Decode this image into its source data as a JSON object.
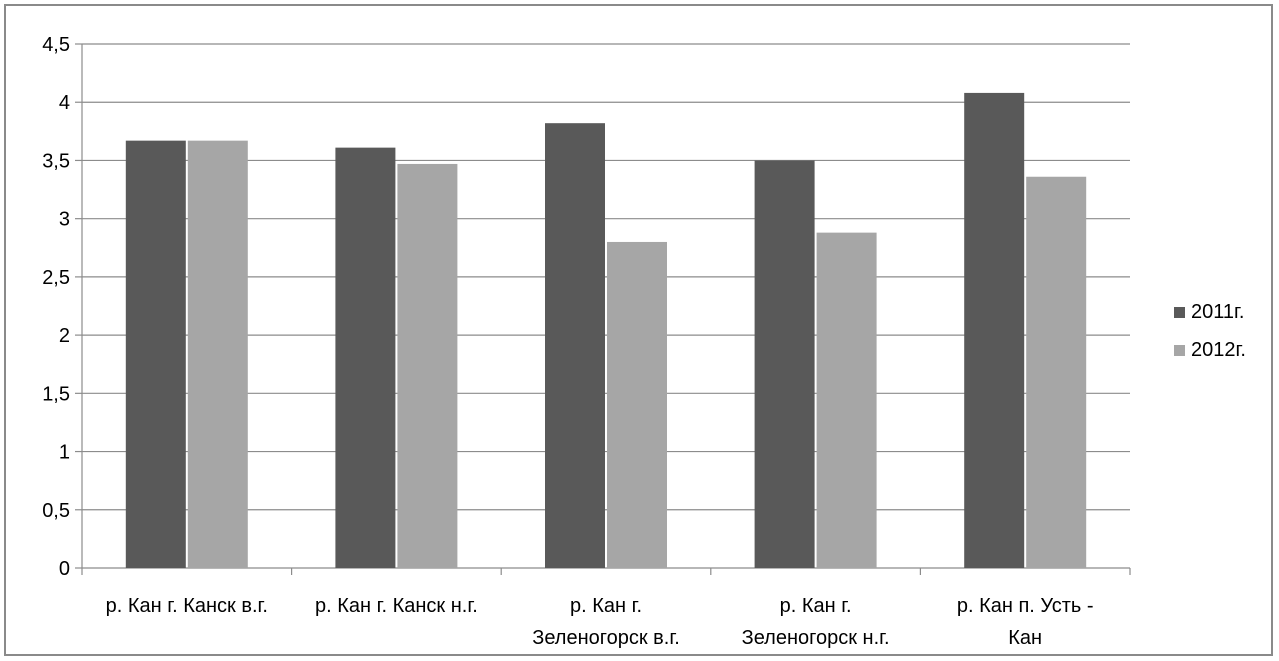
{
  "chart_data": {
    "type": "bar",
    "categories": [
      [
        "р. Кан г. Канск в.г."
      ],
      [
        "р. Кан г. Канск н.г."
      ],
      [
        "р. Кан г.",
        "Зеленогорск в.г."
      ],
      [
        "р. Кан г.",
        "Зеленогорск н.г."
      ],
      [
        "р. Кан п. Усть -",
        "Кан"
      ]
    ],
    "series": [
      {
        "name": "2011г.",
        "color": "#595959",
        "values": [
          3.67,
          3.61,
          3.82,
          3.5,
          4.08
        ]
      },
      {
        "name": "2012г.",
        "color": "#a6a6a6",
        "values": [
          3.67,
          3.47,
          2.8,
          2.88,
          3.36
        ]
      }
    ],
    "ylim": [
      0,
      4.5
    ],
    "yticks": [
      "0",
      "0,5",
      "1",
      "1,5",
      "2",
      "2,5",
      "3",
      "3,5",
      "4",
      "4,5"
    ],
    "grid": true,
    "legend_position": "right"
  }
}
